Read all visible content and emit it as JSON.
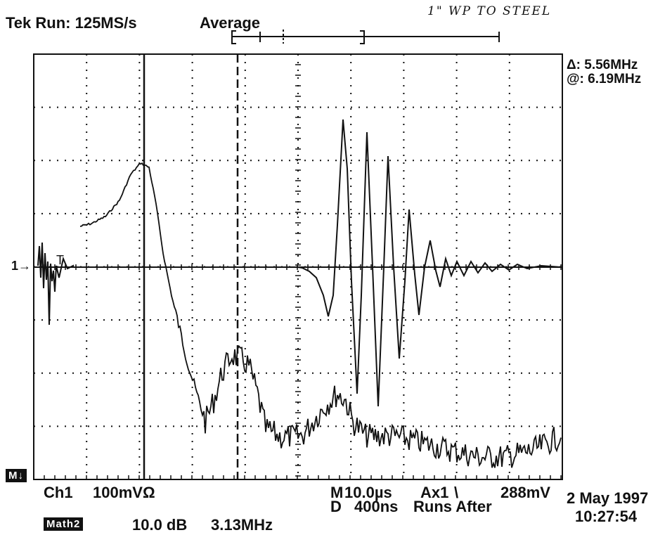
{
  "header": {
    "acq_status": "Tek Run: 125MS/s",
    "acq_mode": "Average",
    "annotation": "1\" WP TO STEEL"
  },
  "cursor_readout": {
    "delta": "Δ: 5.56MHz",
    "at": "@: 6.19MHz"
  },
  "trace_markers": {
    "channel_marker": "1→",
    "trigger_marker": "T",
    "math_marker": "M↓"
  },
  "footer": {
    "ch1": "Ch1",
    "ch1_scale": "100mVΩ",
    "m_label": "M",
    "timebase": "10.0µs",
    "trigger_info": "Ax1",
    "trigger_slope": "\\",
    "trigger_level": "288mV",
    "d_label": "D",
    "delay": "400ns",
    "runs_after": "Runs After",
    "math_label": "Math2",
    "math_scale": "10.0 dB",
    "math_freq": "3.13MHz",
    "date": "2 May 1997",
    "time": "10:27:54"
  },
  "colors": {
    "ink": "#111111",
    "background": "#ffffff"
  }
}
